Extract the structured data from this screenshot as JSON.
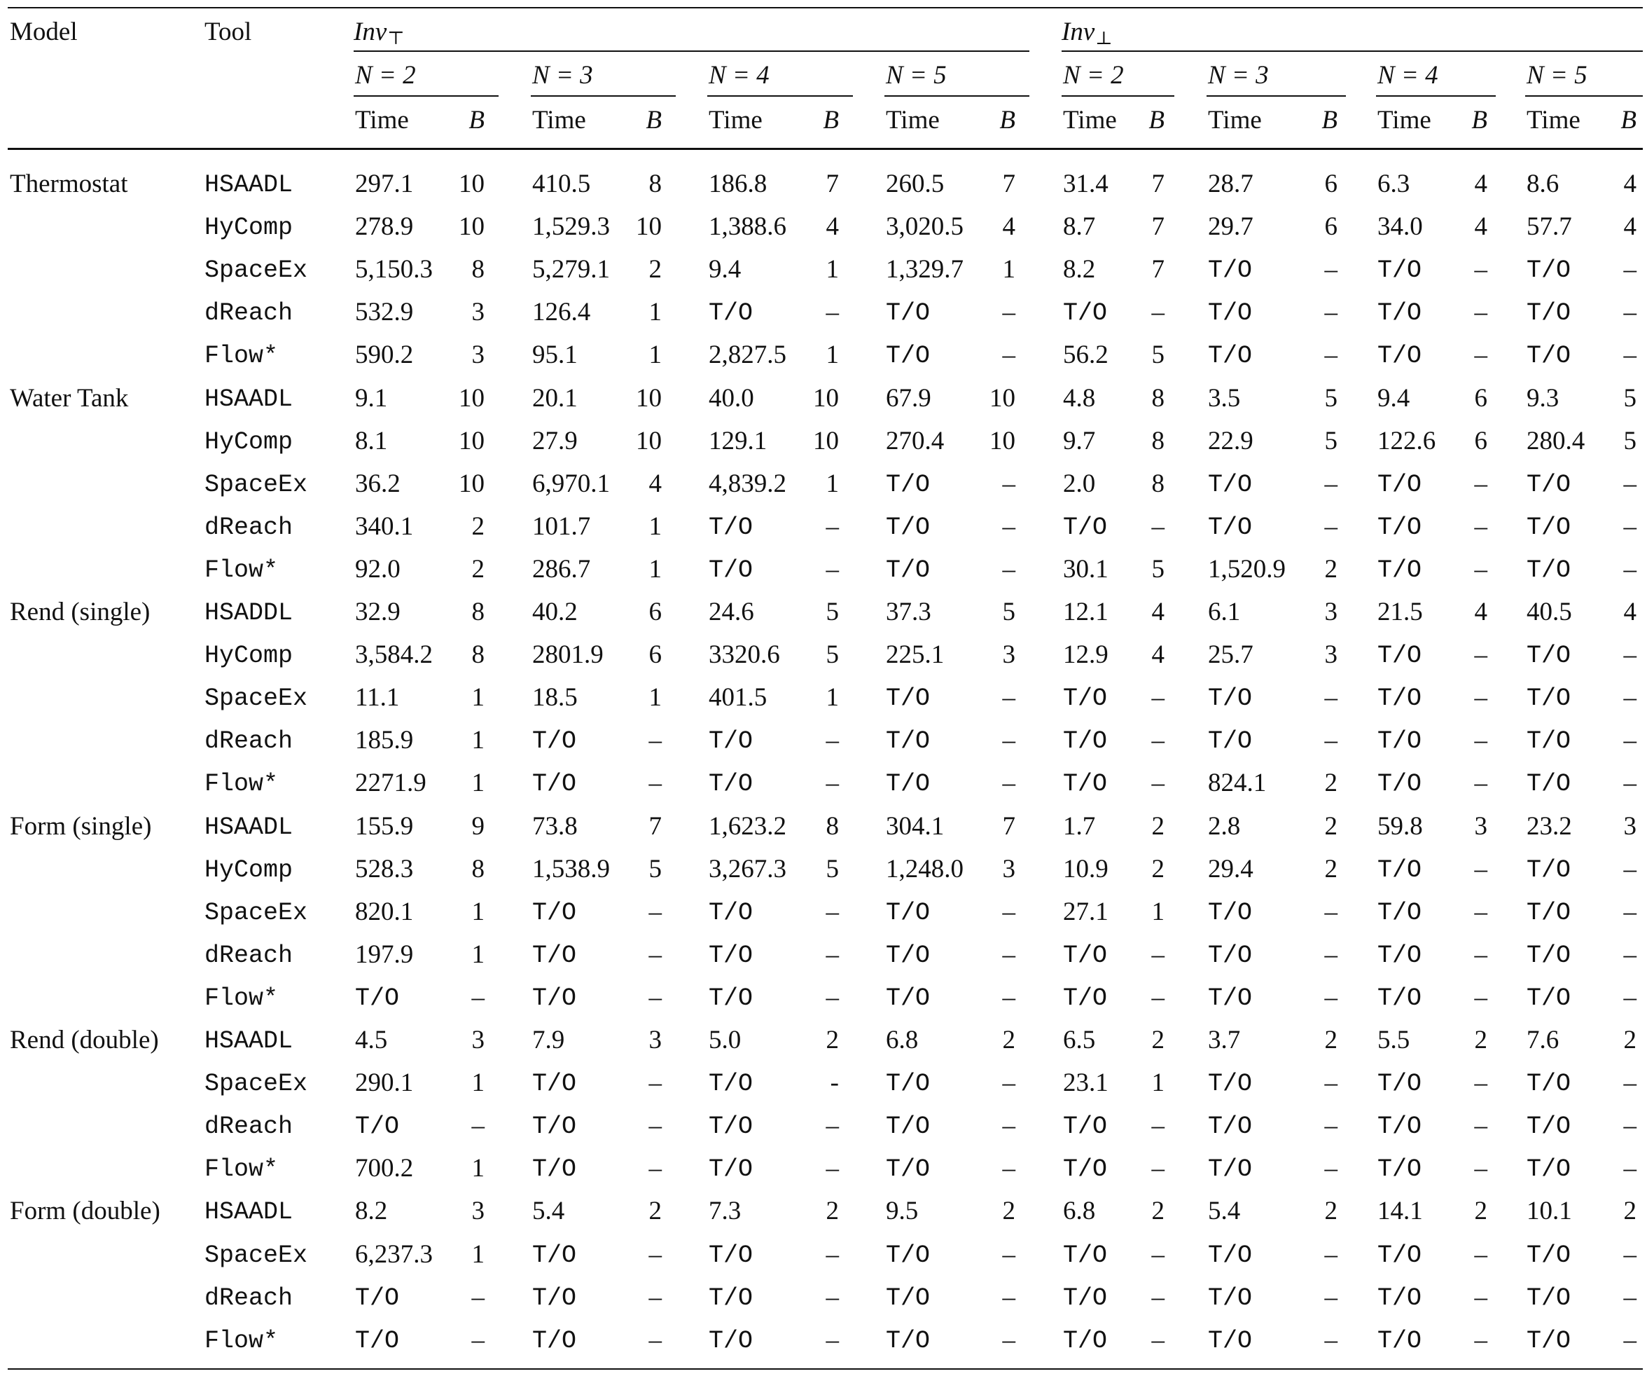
{
  "header": {
    "model": "Model",
    "tool": "Tool",
    "groups": [
      {
        "name": "Inv",
        "sub": "⊤"
      },
      {
        "name": "Inv",
        "sub": "⊥"
      }
    ],
    "n_labels": [
      "N = 2",
      "N = 3",
      "N = 4",
      "N = 5"
    ],
    "time": "Time",
    "b": "B"
  },
  "table": [
    {
      "model": "Thermostat",
      "rows": [
        {
          "tool": "HSAADL",
          "cells": [
            "297.1",
            "10",
            "410.5",
            "8",
            "186.8",
            "7",
            "260.5",
            "7",
            "31.4",
            "7",
            "28.7",
            "6",
            "6.3",
            "4",
            "8.6",
            "4"
          ]
        },
        {
          "tool": "HyComp",
          "cells": [
            "278.9",
            "10",
            "1,529.3",
            "10",
            "1,388.6",
            "4",
            "3,020.5",
            "4",
            "8.7",
            "7",
            "29.7",
            "6",
            "34.0",
            "4",
            "57.7",
            "4"
          ]
        },
        {
          "tool": "SpaceEx",
          "cells": [
            "5,150.3",
            "8",
            "5,279.1",
            "2",
            "9.4",
            "1",
            "1,329.7",
            "1",
            "8.2",
            "7",
            "T/O",
            "–",
            "T/O",
            "–",
            "T/O",
            "–"
          ]
        },
        {
          "tool": "dReach",
          "cells": [
            "532.9",
            "3",
            "126.4",
            "1",
            "T/O",
            "–",
            "T/O",
            "–",
            "T/O",
            "–",
            "T/O",
            "–",
            "T/O",
            "–",
            "T/O",
            "–"
          ]
        },
        {
          "tool": "Flow*",
          "cells": [
            "590.2",
            "3",
            "95.1",
            "1",
            "2,827.5",
            "1",
            "T/O",
            "–",
            "56.2",
            "5",
            "T/O",
            "–",
            "T/O",
            "–",
            "T/O",
            "–"
          ]
        }
      ]
    },
    {
      "model": "Water Tank",
      "rows": [
        {
          "tool": "HSAADL",
          "cells": [
            "9.1",
            "10",
            "20.1",
            "10",
            "40.0",
            "10",
            "67.9",
            "10",
            "4.8",
            "8",
            "3.5",
            "5",
            "9.4",
            "6",
            "9.3",
            "5"
          ]
        },
        {
          "tool": "HyComp",
          "cells": [
            "8.1",
            "10",
            "27.9",
            "10",
            "129.1",
            "10",
            "270.4",
            "10",
            "9.7",
            "8",
            "22.9",
            "5",
            "122.6",
            "6",
            "280.4",
            "5"
          ]
        },
        {
          "tool": "SpaceEx",
          "cells": [
            "36.2",
            "10",
            "6,970.1",
            "4",
            "4,839.2",
            "1",
            "T/O",
            "–",
            "2.0",
            "8",
            "T/O",
            "–",
            "T/O",
            "–",
            "T/O",
            "–"
          ]
        },
        {
          "tool": "dReach",
          "cells": [
            "340.1",
            "2",
            "101.7",
            "1",
            "T/O",
            "–",
            "T/O",
            "–",
            "T/O",
            "–",
            "T/O",
            "–",
            "T/O",
            "–",
            "T/O",
            "–"
          ]
        },
        {
          "tool": "Flow*",
          "cells": [
            "92.0",
            "2",
            "286.7",
            "1",
            "T/O",
            "–",
            "T/O",
            "–",
            "30.1",
            "5",
            "1,520.9",
            "2",
            "T/O",
            "–",
            "T/O",
            "–"
          ]
        }
      ]
    },
    {
      "model": "Rend (single)",
      "rows": [
        {
          "tool": "HSADDL",
          "cells": [
            "32.9",
            "8",
            "40.2",
            "6",
            "24.6",
            "5",
            "37.3",
            "5",
            "12.1",
            "4",
            "6.1",
            "3",
            "21.5",
            "4",
            "40.5",
            "4"
          ]
        },
        {
          "tool": "HyComp",
          "cells": [
            "3,584.2",
            "8",
            "2801.9",
            "6",
            "3320.6",
            "5",
            "225.1",
            "3",
            "12.9",
            "4",
            "25.7",
            "3",
            "T/O",
            "–",
            "T/O",
            "–"
          ]
        },
        {
          "tool": "SpaceEx",
          "cells": [
            "11.1",
            "1",
            "18.5",
            "1",
            "401.5",
            "1",
            "T/O",
            "–",
            "T/O",
            "–",
            "T/O",
            "–",
            "T/O",
            "–",
            "T/O",
            "–"
          ]
        },
        {
          "tool": "dReach",
          "cells": [
            "185.9",
            "1",
            "T/O",
            "–",
            "T/O",
            "–",
            "T/O",
            "–",
            "T/O",
            "–",
            "T/O",
            "–",
            "T/O",
            "–",
            "T/O",
            "–"
          ]
        },
        {
          "tool": "Flow*",
          "cells": [
            "2271.9",
            "1",
            "T/O",
            "–",
            "T/O",
            "–",
            "T/O",
            "–",
            "T/O",
            "–",
            "824.1",
            "2",
            "T/O",
            "–",
            "T/O",
            "–"
          ]
        }
      ]
    },
    {
      "model": "Form (single)",
      "rows": [
        {
          "tool": "HSAADL",
          "cells": [
            "155.9",
            "9",
            "73.8",
            "7",
            "1,623.2",
            "8",
            "304.1",
            "7",
            "1.7",
            "2",
            "2.8",
            "2",
            "59.8",
            "3",
            "23.2",
            "3"
          ]
        },
        {
          "tool": "HyComp",
          "cells": [
            "528.3",
            "8",
            "1,538.9",
            "5",
            "3,267.3",
            "5",
            "1,248.0",
            "3",
            "10.9",
            "2",
            "29.4",
            "2",
            "T/O",
            "–",
            "T/O",
            "–"
          ]
        },
        {
          "tool": "SpaceEx",
          "cells": [
            "820.1",
            "1",
            "T/O",
            "–",
            "T/O",
            "–",
            "T/O",
            "–",
            "27.1",
            "1",
            "T/O",
            "–",
            "T/O",
            "–",
            "T/O",
            "–"
          ]
        },
        {
          "tool": "dReach",
          "cells": [
            "197.9",
            "1",
            "T/O",
            "–",
            "T/O",
            "–",
            "T/O",
            "–",
            "T/O",
            "–",
            "T/O",
            "–",
            "T/O",
            "–",
            "T/O",
            "–"
          ]
        },
        {
          "tool": "Flow*",
          "cells": [
            "T/O",
            "–",
            "T/O",
            "–",
            "T/O",
            "–",
            "T/O",
            "–",
            "T/O",
            "–",
            "T/O",
            "–",
            "T/O",
            "–",
            "T/O",
            "–"
          ]
        }
      ]
    },
    {
      "model": "Rend (double)",
      "rows": [
        {
          "tool": "HSAADL",
          "cells": [
            "4.5",
            "3",
            "7.9",
            "3",
            "5.0",
            "2",
            "6.8",
            "2",
            "6.5",
            "2",
            "3.7",
            "2",
            "5.5",
            "2",
            "7.6",
            "2"
          ]
        },
        {
          "tool": "SpaceEx",
          "cells": [
            "290.1",
            "1",
            "T/O",
            "–",
            "T/O",
            "-",
            "T/O",
            "–",
            "23.1",
            "1",
            "T/O",
            "–",
            "T/O",
            "–",
            "T/O",
            "–"
          ]
        },
        {
          "tool": "dReach",
          "cells": [
            "T/O",
            "–",
            "T/O",
            "–",
            "T/O",
            "–",
            "T/O",
            "–",
            "T/O",
            "–",
            "T/O",
            "–",
            "T/O",
            "–",
            "T/O",
            "–"
          ]
        },
        {
          "tool": "Flow*",
          "cells": [
            "700.2",
            "1",
            "T/O",
            "–",
            "T/O",
            "–",
            "T/O",
            "–",
            "T/O",
            "–",
            "T/O",
            "–",
            "T/O",
            "–",
            "T/O",
            "–"
          ]
        }
      ]
    },
    {
      "model": "Form (double)",
      "rows": [
        {
          "tool": "HSAADL",
          "cells": [
            "8.2",
            "3",
            "5.4",
            "2",
            "7.3",
            "2",
            "9.5",
            "2",
            "6.8",
            "2",
            "5.4",
            "2",
            "14.1",
            "2",
            "10.1",
            "2"
          ]
        },
        {
          "tool": "SpaceEx",
          "cells": [
            "6,237.3",
            "1",
            "T/O",
            "–",
            "T/O",
            "–",
            "T/O",
            "–",
            "T/O",
            "–",
            "T/O",
            "–",
            "T/O",
            "–",
            "T/O",
            "–"
          ]
        },
        {
          "tool": "dReach",
          "cells": [
            "T/O",
            "–",
            "T/O",
            "–",
            "T/O",
            "–",
            "T/O",
            "–",
            "T/O",
            "–",
            "T/O",
            "–",
            "T/O",
            "–",
            "T/O",
            "–"
          ]
        },
        {
          "tool": "Flow*",
          "cells": [
            "T/O",
            "–",
            "T/O",
            "–",
            "T/O",
            "–",
            "T/O",
            "–",
            "T/O",
            "–",
            "T/O",
            "–",
            "T/O",
            "–",
            "T/O",
            "–"
          ]
        }
      ]
    }
  ]
}
